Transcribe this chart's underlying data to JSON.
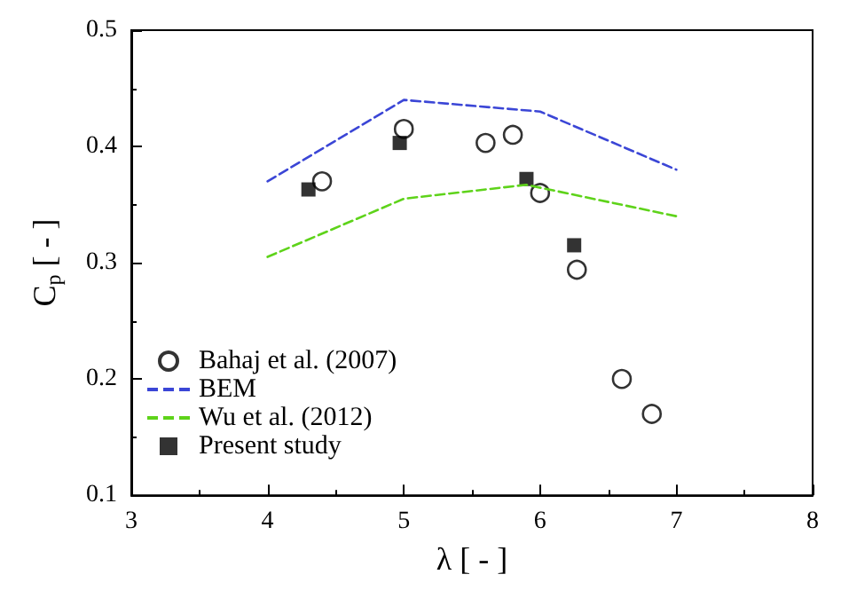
{
  "chart_data": {
    "type": "scatter",
    "xlabel": "λ [ - ]",
    "ylabel": "C$_{p}$ [ - ]",
    "xlim": [
      3,
      8
    ],
    "xticks": [
      3,
      4,
      5,
      6,
      7,
      8
    ],
    "ylim": [
      0.1,
      0.5
    ],
    "yticks": [
      0.1,
      0.2,
      0.3,
      0.4,
      0.5
    ],
    "grid": false,
    "legend": "left",
    "series": [
      {
        "name": "Bahaj et al. (2007)",
        "marker": "circle",
        "color": "#000000",
        "x": [
          4.4,
          5.0,
          5.6,
          5.8,
          6.0,
          6.27,
          6.6,
          6.82
        ],
        "values": [
          0.37,
          0.415,
          0.403,
          0.41,
          0.36,
          0.294,
          0.2,
          0.17
        ]
      },
      {
        "name": "BEM",
        "type": "line",
        "marker": "none",
        "line_style": "dashed",
        "color": "#3b46d6",
        "x": [
          4,
          5,
          6,
          7
        ],
        "values": [
          0.37,
          0.44,
          0.43,
          0.38
        ]
      },
      {
        "name": "Wu et al. (2012)",
        "type": "line",
        "marker": "none",
        "line_style": "dashed",
        "color": "#5ed31a",
        "x": [
          4,
          5,
          5.9,
          7
        ],
        "values": [
          0.305,
          0.355,
          0.367,
          0.34
        ]
      },
      {
        "name": "Present study",
        "marker": "square",
        "color": "#000000",
        "x": [
          4.3,
          4.97,
          5.9,
          6.25
        ],
        "values": [
          0.363,
          0.403,
          0.372,
          0.315
        ]
      }
    ]
  }
}
